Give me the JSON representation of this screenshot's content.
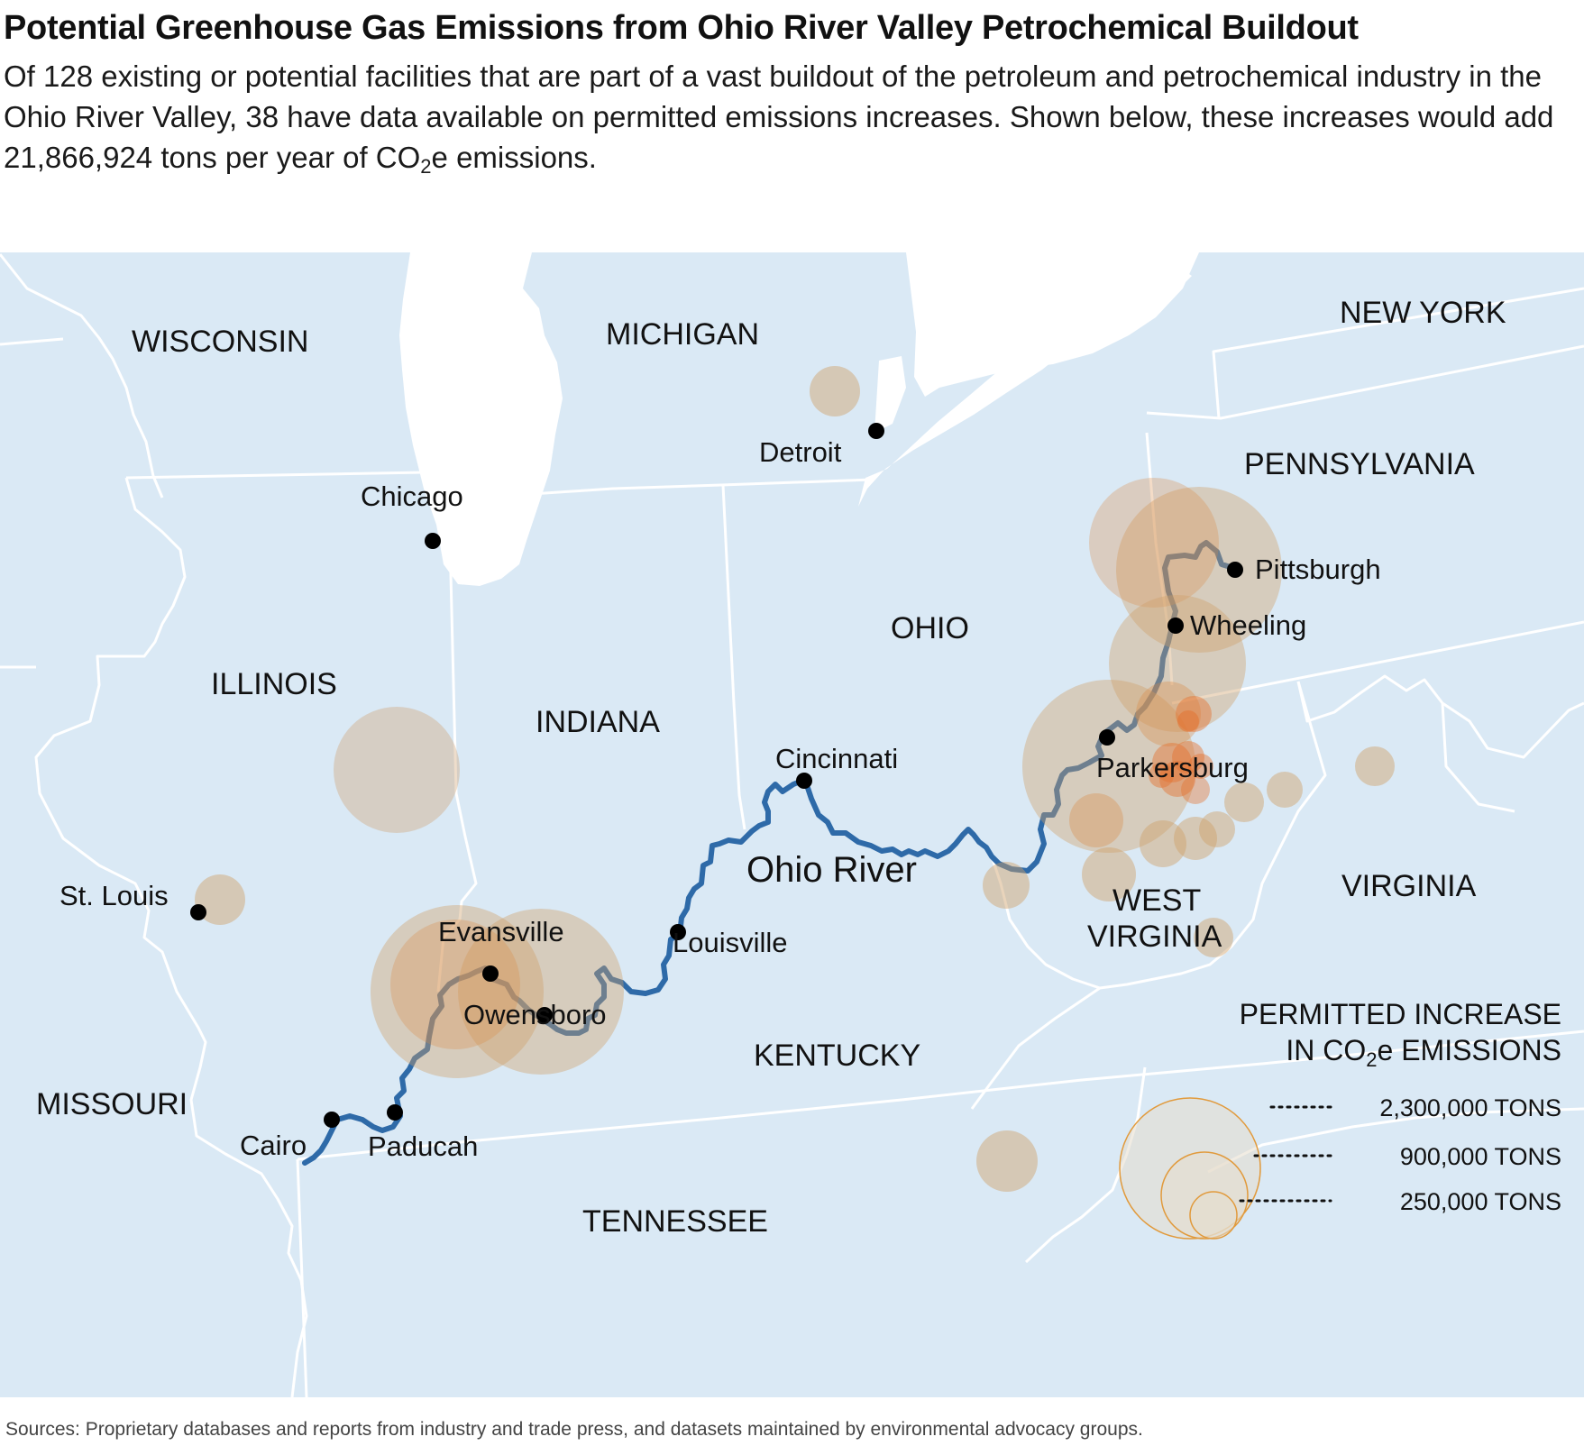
{
  "title": "Potential Greenhouse Gas Emissions from Ohio River Valley Petrochemical Buildout",
  "subtitle_parts": {
    "before": "Of 128 existing or potential facilities that are part of a vast buildout of the petroleum and petrochemical industry in the Ohio River Valley, 38 have data available on permitted emissions increases. Shown below, these increases would add 21,866,924 tons per year of CO",
    "sub": "2",
    "after": "e emissions."
  },
  "colors": {
    "land": "#dae9f5",
    "lake": "#ffffff",
    "borders": "#ffffff",
    "river": "#2e6aa8",
    "bubble": "#cf9f69",
    "bubble_dark": "#e4702e",
    "legend_ring": "#e19a3c"
  },
  "states": [
    {
      "name": "WISCONSIN"
    },
    {
      "name": "MICHIGAN"
    },
    {
      "name": "NEW YORK"
    },
    {
      "name": "PENNSYLVANIA"
    },
    {
      "name": "OHIO"
    },
    {
      "name": "ILLINOIS"
    },
    {
      "name": "INDIANA"
    },
    {
      "name": "WEST"
    },
    {
      "name": "VIRGINIA"
    },
    {
      "name": "VIRGINIA"
    },
    {
      "name": "KENTUCKY"
    },
    {
      "name": "MISSOURI"
    },
    {
      "name": "TENNESSEE"
    }
  ],
  "cities": [
    {
      "name": "Detroit"
    },
    {
      "name": "Chicago"
    },
    {
      "name": "Pittsburgh"
    },
    {
      "name": "Wheeling"
    },
    {
      "name": "Parkersburg"
    },
    {
      "name": "Cincinnati"
    },
    {
      "name": "St. Louis"
    },
    {
      "name": "Evansville"
    },
    {
      "name": "Owensboro"
    },
    {
      "name": "Louisville"
    },
    {
      "name": "Cairo"
    },
    {
      "name": "Paducah"
    }
  ],
  "river_label": "Ohio River",
  "legend": {
    "title_line1": "PERMITTED INCREASE",
    "title_line2_before": "IN CO",
    "title_line2_sub": "2",
    "title_line2_after": "e EMISSIONS",
    "items": [
      {
        "label": "2,300,000 TONS",
        "tons": 2300000
      },
      {
        "label": "900,000 TONS",
        "tons": 900000
      },
      {
        "label": "250,000 TONS",
        "tons": 250000
      }
    ]
  },
  "sources": "Sources: Proprietary databases and reports from industry and trade press, and datasets maintained by environmental advocacy groups."
}
